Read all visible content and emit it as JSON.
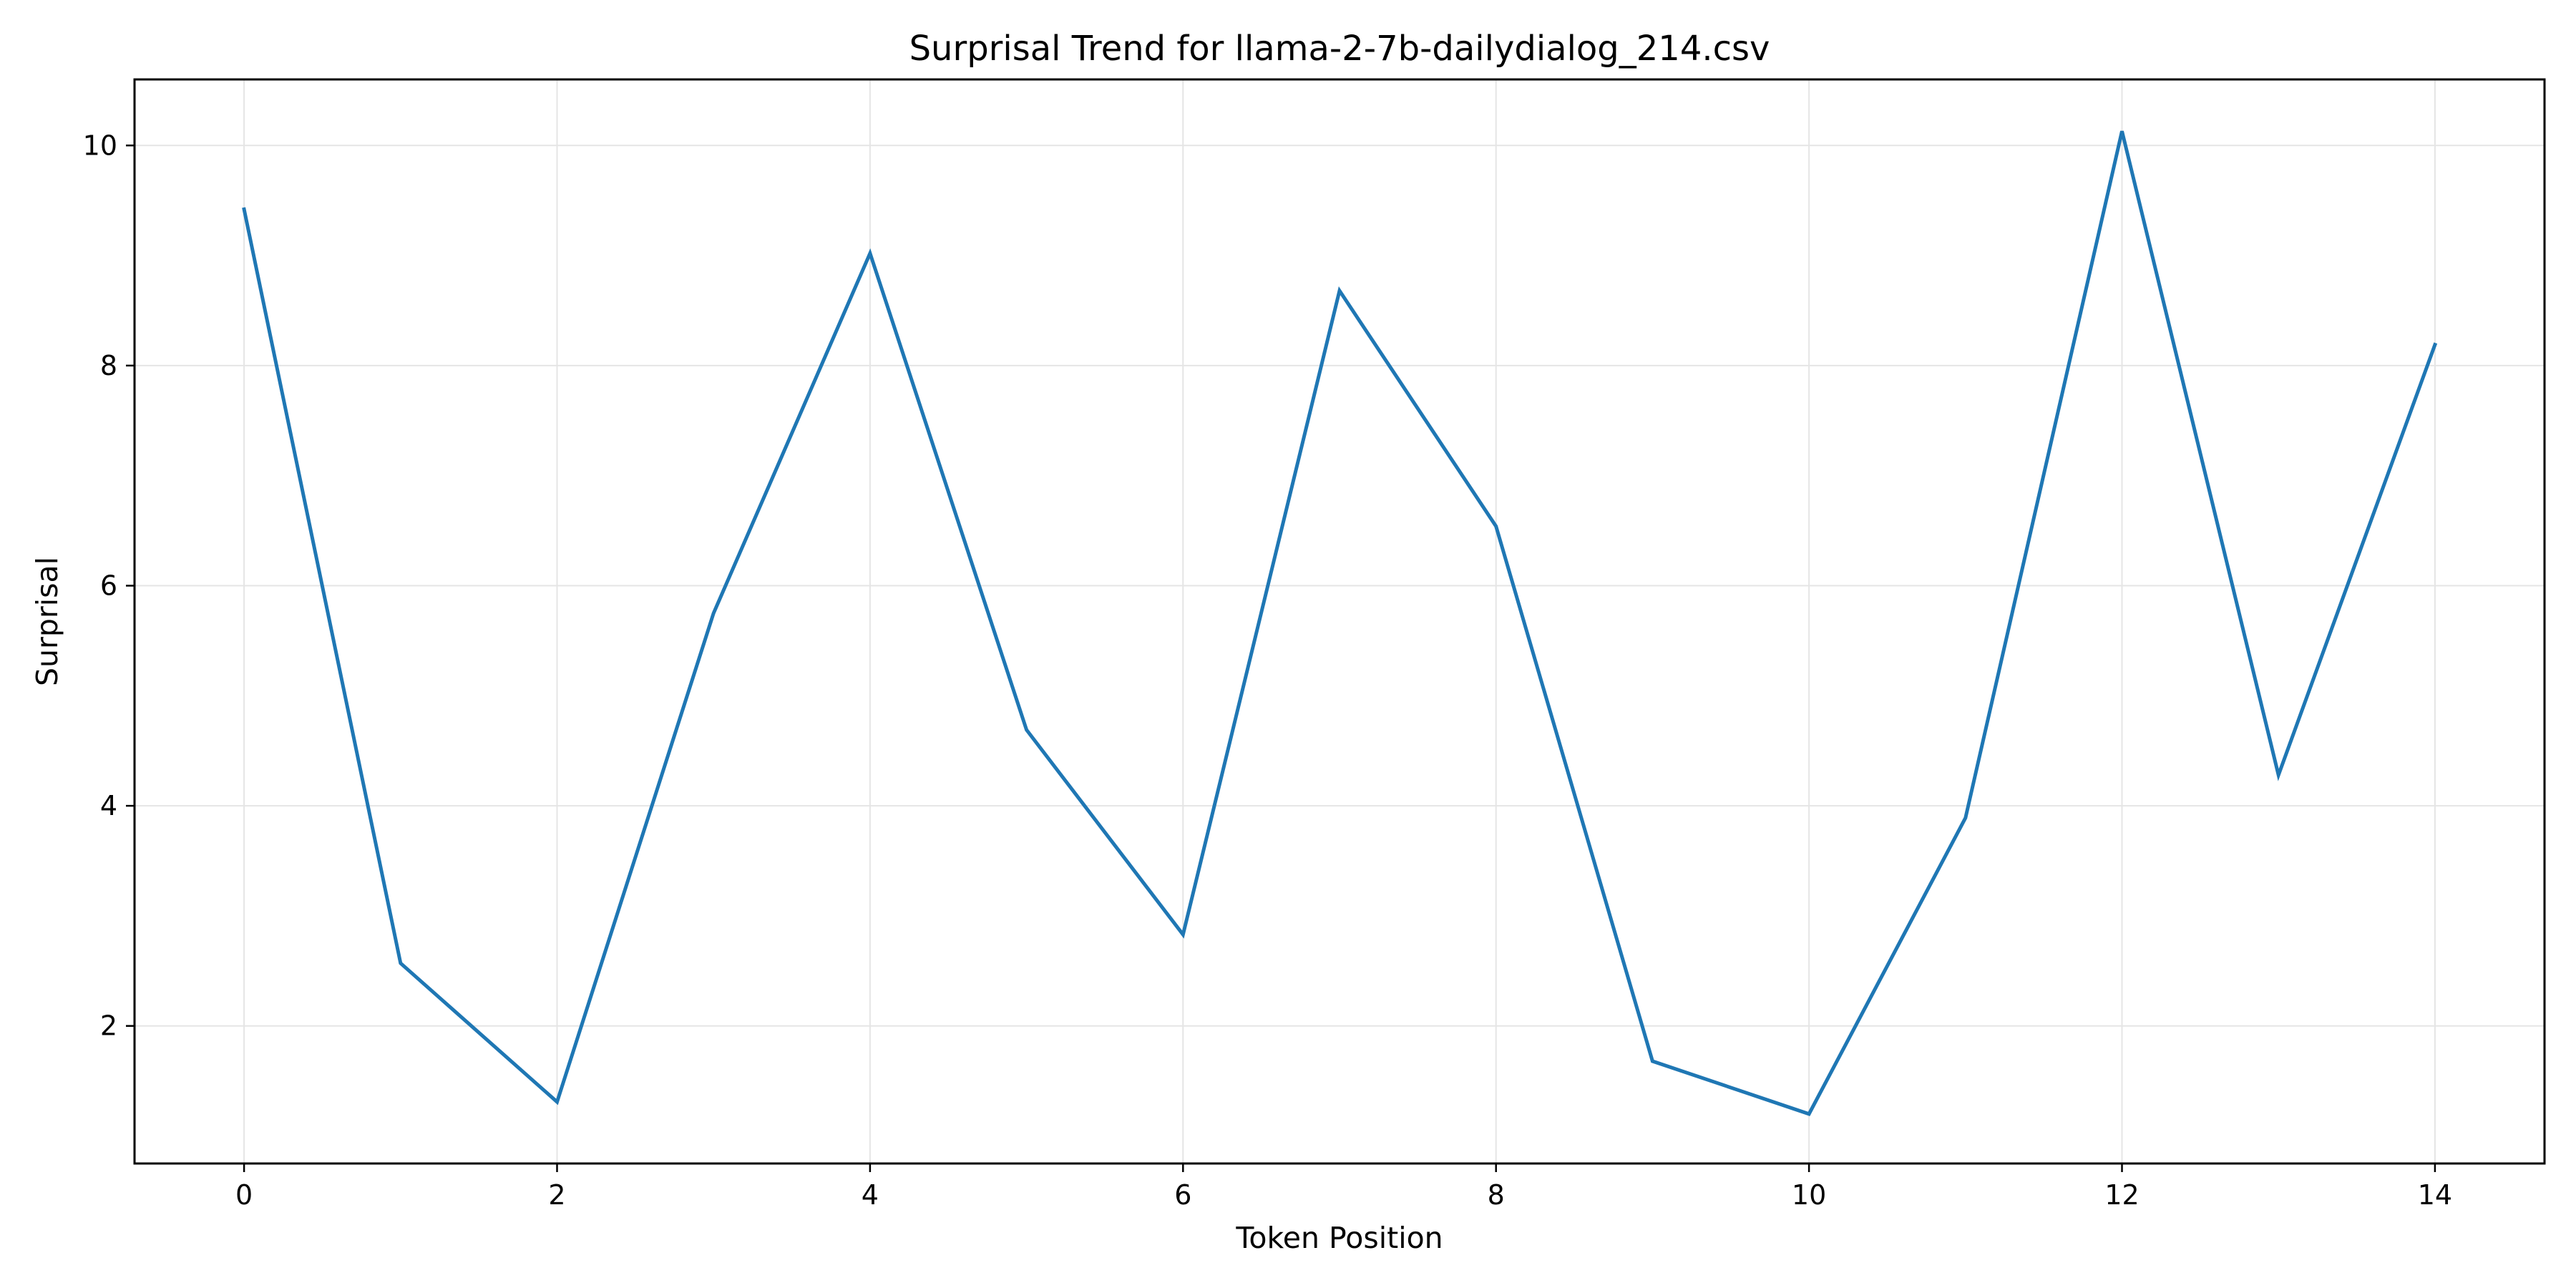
{
  "chart_data": {
    "type": "line",
    "title": "Surprisal Trend for llama-2-7b-dailydialog_214.csv",
    "xlabel": "Token Position",
    "ylabel": "Surprisal",
    "x": [
      0,
      1,
      2,
      3,
      4,
      5,
      6,
      7,
      8,
      9,
      10,
      11,
      12,
      13,
      14
    ],
    "series": [
      {
        "values": [
          9.42,
          2.57,
          1.31,
          5.75,
          9.02,
          4.69,
          2.83,
          8.68,
          6.54,
          1.68,
          1.2,
          3.89,
          10.13,
          4.28,
          8.19
        ],
        "color": "#1f77b4"
      }
    ],
    "xlim": [
      -0.7,
      14.7
    ],
    "ylim": [
      0.75,
      10.6
    ],
    "xticks": [
      "0",
      "2",
      "4",
      "6",
      "8",
      "10",
      "12",
      "14"
    ],
    "yticks": [
      "2",
      "4",
      "6",
      "8",
      "10"
    ],
    "grid": true,
    "legend": "none"
  }
}
